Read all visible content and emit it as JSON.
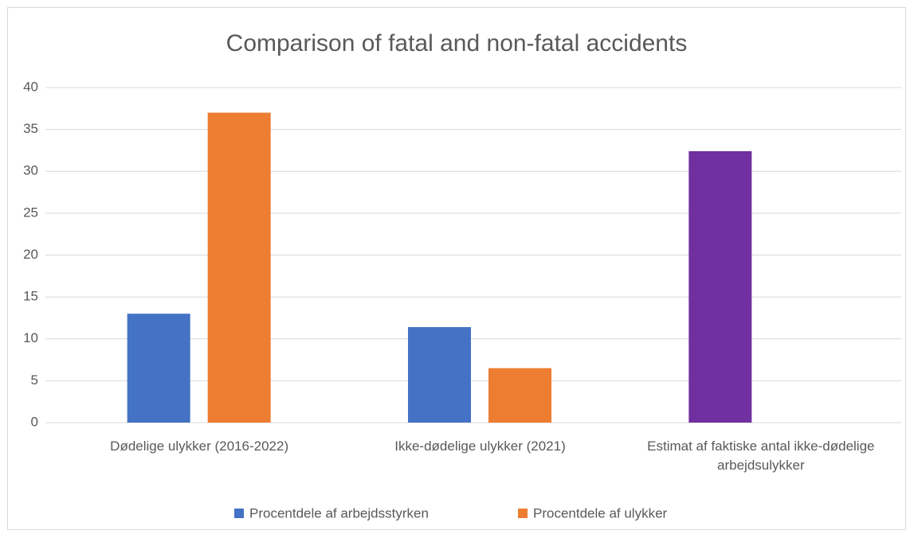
{
  "chart_data": {
    "type": "bar",
    "title": "Comparison of fatal and non-fatal accidents",
    "categories": [
      "Dødelige ulykker (2016-2022)",
      "Ikke-dødelige ulykker (2021)",
      "Estimat af faktiske antal ikke-dødelige arbejdsulykker"
    ],
    "series": [
      {
        "name": "Procentdele af arbejdsstyrken",
        "color": "#4472c4",
        "colors": [
          "#4472c4",
          "#4472c4",
          "#7030a0"
        ],
        "values": [
          13,
          11.4,
          32.4
        ]
      },
      {
        "name": "Procentdele af ulykker",
        "color": "#ed7d31",
        "values": [
          37,
          6.5,
          null
        ]
      }
    ],
    "ylim": [
      0,
      40
    ],
    "yticks": [
      0,
      5,
      10,
      15,
      20,
      25,
      30,
      35,
      40
    ],
    "grid": true,
    "legend": "bottom"
  }
}
